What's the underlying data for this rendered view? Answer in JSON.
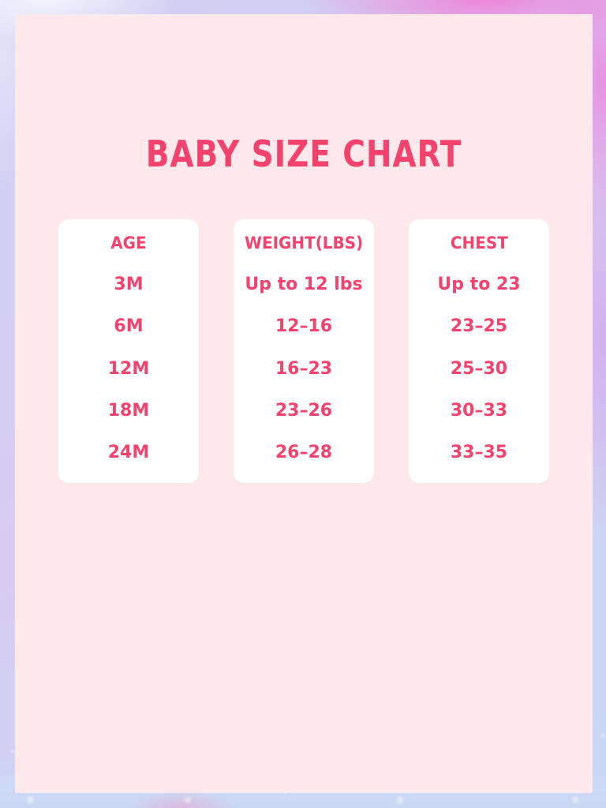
{
  "title": "BABY SIZE CHART",
  "colors": {
    "accent_pink": "#F4426E",
    "panel_background": "#FDE9EB",
    "card_background": "#FFFFFF",
    "border_lavender": "#CDD1F1",
    "border_magenta": "#EE8ED8",
    "border_blue": "#C9D7F4"
  },
  "columns": [
    {
      "header": "AGE",
      "values": [
        "3M",
        "6M",
        "12M",
        "18M",
        "24M"
      ]
    },
    {
      "header": "WEIGHT(LBS)",
      "values": [
        "Up to 12 lbs",
        "12–16",
        "16–23",
        "23–26",
        "26–28"
      ]
    },
    {
      "header": "CHEST",
      "values": [
        "Up to 23",
        "23–25",
        "25–30",
        "30–33",
        "33–35"
      ]
    }
  ],
  "chart_data": {
    "type": "table",
    "title": "BABY SIZE CHART",
    "columns": [
      "AGE",
      "WEIGHT(LBS)",
      "CHEST"
    ],
    "rows": [
      [
        "3M",
        "Up to 12 lbs",
        "Up to 23"
      ],
      [
        "6M",
        "12–16",
        "23–25"
      ],
      [
        "12M",
        "16–23",
        "25–30"
      ],
      [
        "18M",
        "23–26",
        "30–33"
      ],
      [
        "24M",
        "26–28",
        "33–35"
      ]
    ]
  }
}
